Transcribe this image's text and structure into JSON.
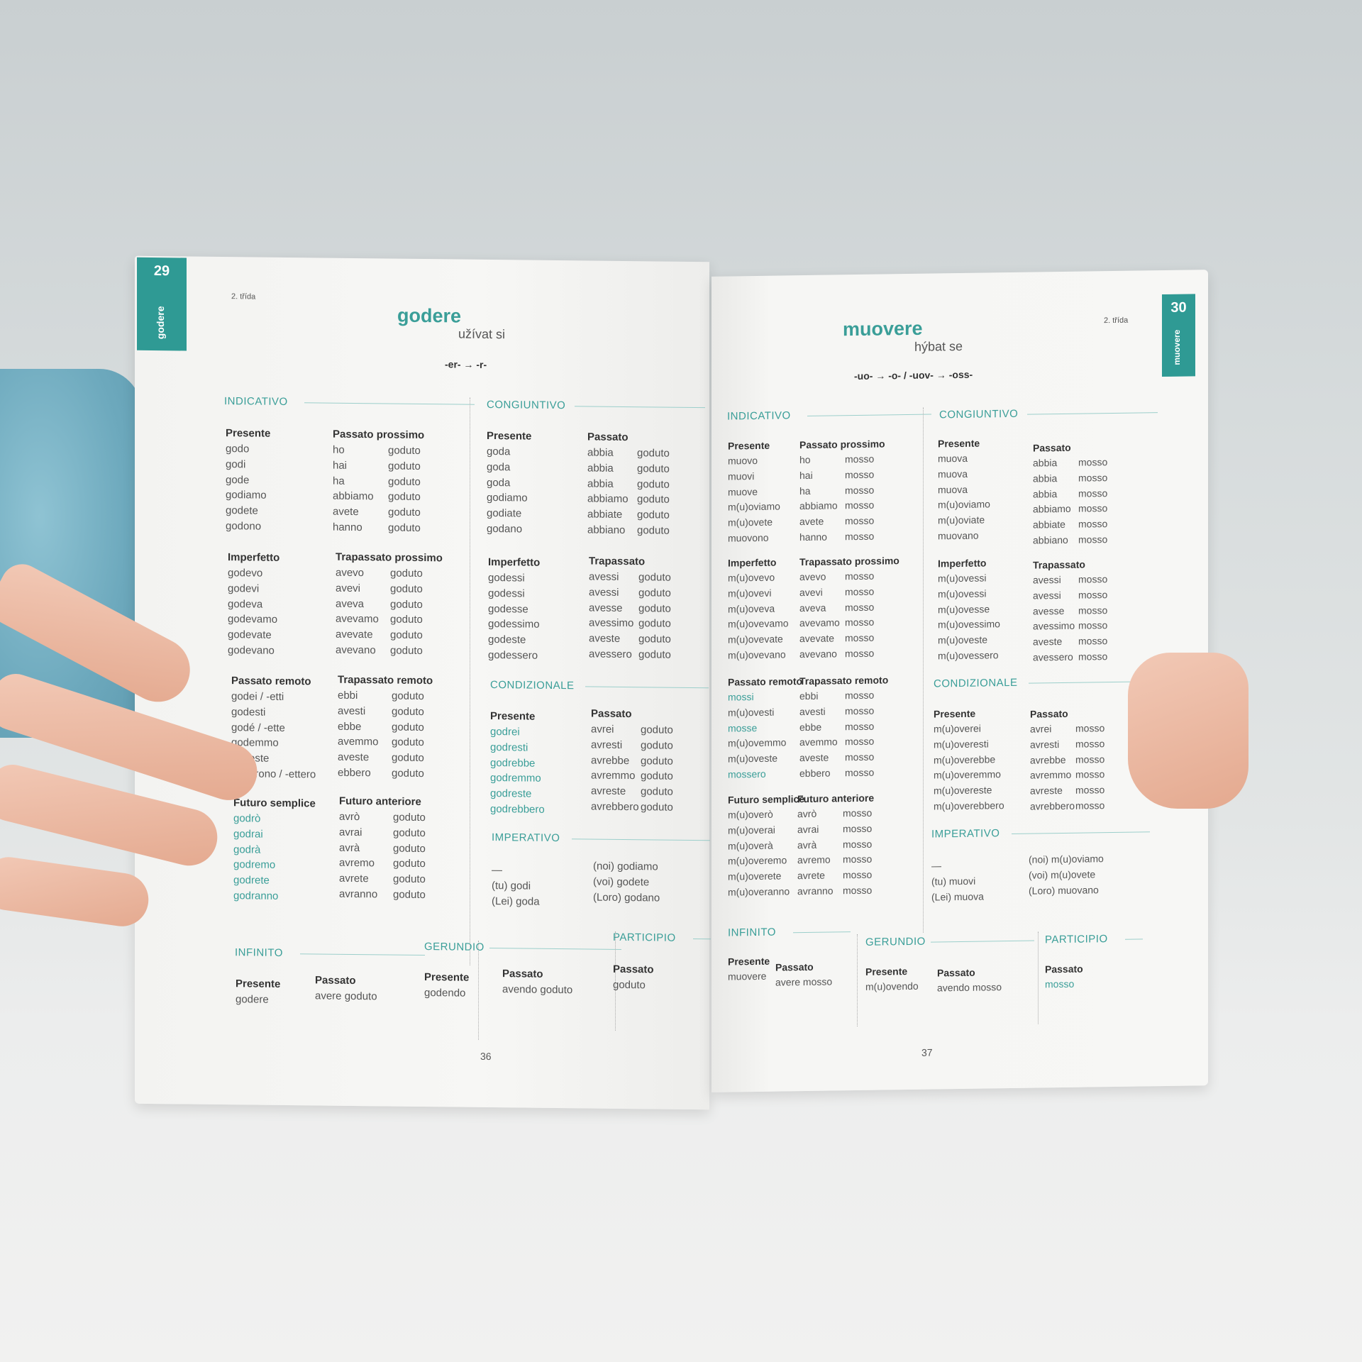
{
  "colors": {
    "accent": "#3a9e98",
    "tab": "#2f9a94",
    "text": "#555555"
  },
  "left": {
    "tab_number": "29",
    "tab_word": "godere",
    "class": "2. třída",
    "title": "godere",
    "translation": "užívat si",
    "stem_change": "-er- → -r-",
    "page_number": "36",
    "sections": {
      "indicativo": "INDICATIVO",
      "congiuntivo": "CONGIUNTIVO",
      "condizionale": "CONDIZIONALE",
      "imperativo": "IMPERATIVO",
      "infinito": "INFINITO",
      "gerundio": "GERUNDIO",
      "participio": "PARTICIPIO"
    },
    "tenses": {
      "ind_presente": {
        "label": "Presente",
        "forms": [
          "godo",
          "godi",
          "gode",
          "godiamo",
          "godete",
          "godono"
        ]
      },
      "ind_pass_pross": {
        "label": "Passato prossimo",
        "forms": [
          "ho",
          "hai",
          "ha",
          "abbiamo",
          "avete",
          "hanno"
        ],
        "participle": "goduto"
      },
      "ind_imperfetto": {
        "label": "Imperfetto",
        "forms": [
          "godevo",
          "godevi",
          "godeva",
          "godevamo",
          "godevate",
          "godevano"
        ]
      },
      "ind_trap_pross": {
        "label": "Trapassato prossimo",
        "forms": [
          "avevo",
          "avevi",
          "aveva",
          "avevamo",
          "avevate",
          "avevano"
        ],
        "participle": "goduto"
      },
      "ind_pass_remoto": {
        "label": "Passato remoto",
        "forms": [
          "godei / -etti",
          "godesti",
          "godé / -ette",
          "godemmo",
          "godeste",
          "goderono / -ettero"
        ]
      },
      "ind_trap_remoto": {
        "label": "Trapassato remoto",
        "forms": [
          "ebbi",
          "avesti",
          "ebbe",
          "avemmo",
          "aveste",
          "ebbero"
        ],
        "participle": "goduto"
      },
      "ind_futuro": {
        "label": "Futuro semplice",
        "forms": [
          "godrò",
          "godrai",
          "godrà",
          "godremo",
          "godrete",
          "godranno"
        ],
        "highlight": true
      },
      "ind_fut_ant": {
        "label": "Futuro anteriore",
        "forms": [
          "avrò",
          "avrai",
          "avrà",
          "avremo",
          "avrete",
          "avranno"
        ],
        "participle": "goduto"
      },
      "cong_presente": {
        "label": "Presente",
        "forms": [
          "goda",
          "goda",
          "goda",
          "godiamo",
          "godiate",
          "godano"
        ]
      },
      "cong_passato": {
        "label": "Passato",
        "forms": [
          "abbia",
          "abbia",
          "abbia",
          "abbiamo",
          "abbiate",
          "abbiano"
        ],
        "participle": "goduto"
      },
      "cong_imperfetto": {
        "label": "Imperfetto",
        "forms": [
          "godessi",
          "godessi",
          "godesse",
          "godessimo",
          "godeste",
          "godessero"
        ]
      },
      "cong_trapassato": {
        "label": "Trapassato",
        "forms": [
          "avessi",
          "avessi",
          "avesse",
          "avessimo",
          "aveste",
          "avessero"
        ],
        "participle": "goduto"
      },
      "cond_presente": {
        "label": "Presente",
        "forms": [
          "godrei",
          "godresti",
          "godrebbe",
          "godremmo",
          "godreste",
          "godrebbero"
        ],
        "highlight": true
      },
      "cond_passato": {
        "label": "Passato",
        "forms": [
          "avrei",
          "avresti",
          "avrebbe",
          "avremmo",
          "avreste",
          "avrebbero"
        ],
        "participle": "goduto"
      },
      "imp_1": {
        "label": "",
        "forms": [
          "—",
          "(tu)  godi",
          "(Lei)  goda"
        ]
      },
      "imp_2": {
        "label": "",
        "forms": [
          "(noi)  godiamo",
          "(voi)  godete",
          "(Loro)  godano"
        ]
      },
      "inf_presente": {
        "label": "Presente",
        "forms": [
          "godere"
        ]
      },
      "inf_passato": {
        "label": "Passato",
        "forms": [
          "avere goduto"
        ]
      },
      "ger_presente": {
        "label": "Presente",
        "forms": [
          "godendo"
        ]
      },
      "ger_passato": {
        "label": "Passato",
        "forms": [
          "avendo goduto"
        ]
      },
      "part_passato": {
        "label": "Passato",
        "forms": [
          "goduto"
        ]
      }
    }
  },
  "right": {
    "tab_number": "30",
    "tab_word": "muovere",
    "class": "2. třída",
    "title": "muovere",
    "translation": "hýbat se",
    "stem_change": "-uo- → -o- / -uov- → -oss-",
    "page_number": "37",
    "sections": {
      "indicativo": "INDICATIVO",
      "congiuntivo": "CONGIUNTIVO",
      "condizionale": "CONDIZIONALE",
      "imperativo": "IMPERATIVO",
      "infinito": "INFINITO",
      "gerundio": "GERUNDIO",
      "participio": "PARTICIPIO"
    },
    "tenses": {
      "ind_presente": {
        "label": "Presente",
        "forms": [
          "muovo",
          "muovi",
          "muove",
          "m(u)oviamo",
          "m(u)ovete",
          "muovono"
        ]
      },
      "ind_pass_pross": {
        "label": "Passato prossimo",
        "forms": [
          "ho",
          "hai",
          "ha",
          "abbiamo",
          "avete",
          "hanno"
        ],
        "participle": "mosso"
      },
      "ind_imperfetto": {
        "label": "Imperfetto",
        "forms": [
          "m(u)ovevo",
          "m(u)ovevi",
          "m(u)oveva",
          "m(u)ovevamo",
          "m(u)ovevate",
          "m(u)ovevano"
        ]
      },
      "ind_trap_pross": {
        "label": "Trapassato prossimo",
        "forms": [
          "avevo",
          "avevi",
          "aveva",
          "avevamo",
          "avevate",
          "avevano"
        ],
        "participle": "mosso"
      },
      "ind_pass_remoto": {
        "label": "Passato remoto",
        "forms": [
          "mossi",
          "m(u)ovesti",
          "mosse",
          "m(u)ovemmo",
          "m(u)oveste",
          "mossero"
        ],
        "highlight_rows": [
          0,
          2,
          5
        ]
      },
      "ind_trap_remoto": {
        "label": "Trapassato remoto",
        "forms": [
          "ebbi",
          "avesti",
          "ebbe",
          "avemmo",
          "aveste",
          "ebbero"
        ],
        "participle": "mosso"
      },
      "ind_futuro": {
        "label": "Futuro semplice",
        "forms": [
          "m(u)overò",
          "m(u)overai",
          "m(u)overà",
          "m(u)overemo",
          "m(u)overete",
          "m(u)overanno"
        ]
      },
      "ind_fut_ant": {
        "label": "Futuro anteriore",
        "forms": [
          "avrò",
          "avrai",
          "avrà",
          "avremo",
          "avrete",
          "avranno"
        ],
        "participle": "mosso"
      },
      "cong_presente": {
        "label": "Presente",
        "forms": [
          "muova",
          "muova",
          "muova",
          "m(u)oviamo",
          "m(u)oviate",
          "muovano"
        ]
      },
      "cong_passato": {
        "label": "Passato",
        "forms": [
          "abbia",
          "abbia",
          "abbia",
          "abbiamo",
          "abbiate",
          "abbiano"
        ],
        "participle": "mosso"
      },
      "cong_imperfetto": {
        "label": "Imperfetto",
        "forms": [
          "m(u)ovessi",
          "m(u)ovessi",
          "m(u)ovesse",
          "m(u)ovessimo",
          "m(u)oveste",
          "m(u)ovessero"
        ]
      },
      "cong_trapassato": {
        "label": "Trapassato",
        "forms": [
          "avessi",
          "avessi",
          "avesse",
          "avessimo",
          "aveste",
          "avessero"
        ],
        "participle": "mosso"
      },
      "cond_presente": {
        "label": "Presente",
        "forms": [
          "m(u)overei",
          "m(u)overesti",
          "m(u)overebbe",
          "m(u)overemmo",
          "m(u)overeste",
          "m(u)overebbero"
        ]
      },
      "cond_passato": {
        "label": "Passato",
        "forms": [
          "avrei",
          "avresti",
          "avrebbe",
          "avremmo",
          "avreste",
          "avrebbero"
        ],
        "participle": "mosso"
      },
      "imp_1": {
        "label": "",
        "forms": [
          "—",
          "(tu)  muovi",
          "(Lei)  muova"
        ]
      },
      "imp_2": {
        "label": "",
        "forms": [
          "(noi)  m(u)oviamo",
          "(voi)  m(u)ovete",
          "(Loro)  muovano"
        ]
      },
      "inf_presente": {
        "label": "Presente",
        "forms": [
          "muovere"
        ]
      },
      "inf_passato": {
        "label": "Passato",
        "forms": [
          "avere mosso"
        ]
      },
      "ger_presente": {
        "label": "Presente",
        "forms": [
          "m(u)ovendo"
        ]
      },
      "ger_passato": {
        "label": "Passato",
        "forms": [
          "avendo mosso"
        ]
      },
      "part_passato": {
        "label": "Passato",
        "forms": [
          "mosso"
        ],
        "highlight": true
      }
    }
  }
}
